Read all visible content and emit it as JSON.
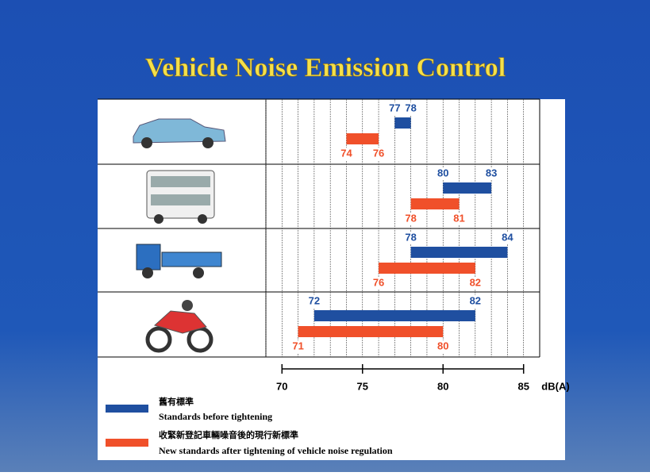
{
  "chart_data": {
    "type": "range_bar",
    "title": "Vehicle Noise Emission Control",
    "x_label": "dB(A)",
    "categories": [
      null,
      null,
      null,
      null
    ],
    "xlim": [
      69,
      86
    ],
    "xticks": [
      70,
      75,
      80,
      85
    ],
    "grid": true,
    "grid_minor_step": 1,
    "series": [
      {
        "name": "Standards before tightening",
        "name_zh": "舊有標準",
        "color": "#1f4fa0",
        "low": [
          77,
          80,
          78,
          72
        ],
        "high": [
          78,
          83,
          84,
          82
        ]
      },
      {
        "name": "New standards after tightening of vehicle noise regulation",
        "name_zh": "收緊新登記車輛噪音後的現行新標準",
        "color": "#f0502a",
        "low": [
          74,
          78,
          76,
          71
        ],
        "high": [
          76,
          81,
          82,
          80
        ]
      }
    ]
  }
}
